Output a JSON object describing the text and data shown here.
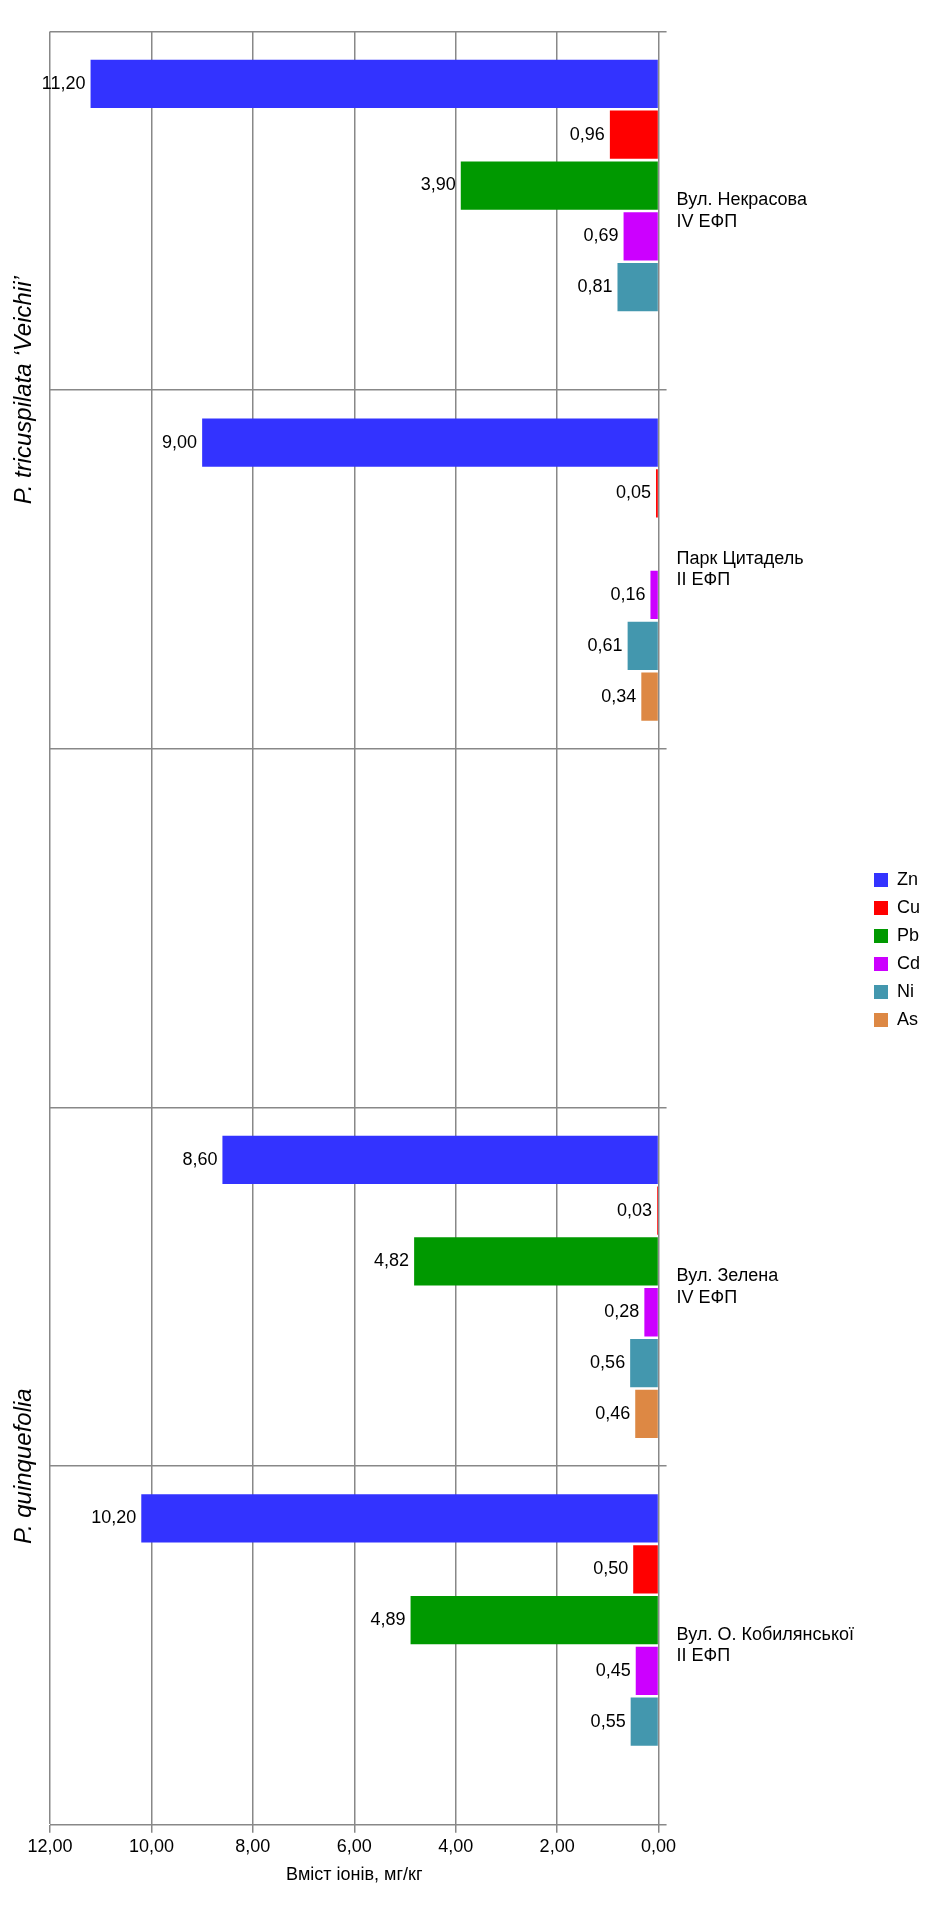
{
  "chart_data": {
    "type": "bar",
    "orientation": "horizontal",
    "xlabel": "Вміст іонів, мг/кг",
    "categories": [
      "Вул. Некрасова\nIV ЕФП",
      "Парк Цитадель\nII ЕФП",
      null,
      "Вул. Зелена\nIV ЕФП",
      "Вул. О. Кобилянської\nII ЕФП"
    ],
    "series": [
      {
        "name": "Zn",
        "color": "#3333ff",
        "values": [
          11.2,
          9.0,
          null,
          8.6,
          10.2
        ],
        "value_labels": [
          "11,20",
          "9,00",
          null,
          "8,60",
          "10,20"
        ]
      },
      {
        "name": "Cu",
        "color": "#ff0000",
        "values": [
          0.96,
          0.05,
          null,
          0.03,
          0.5
        ],
        "value_labels": [
          "0,96",
          "0,05",
          null,
          "0,03",
          "0,50"
        ]
      },
      {
        "name": "Pb",
        "color": "#009900",
        "values": [
          3.9,
          null,
          null,
          4.82,
          4.89
        ],
        "value_labels": [
          "3,90",
          null,
          null,
          "4,82",
          "4,89"
        ]
      },
      {
        "name": "Cd",
        "color": "#cc00ff",
        "values": [
          0.69,
          0.16,
          null,
          0.28,
          0.45
        ],
        "value_labels": [
          "0,69",
          "0,16",
          null,
          "0,28",
          "0,45"
        ]
      },
      {
        "name": "Ni",
        "color": "#4397ae",
        "values": [
          0.81,
          0.61,
          null,
          0.56,
          0.55
        ],
        "value_labels": [
          "0,81",
          "0,61",
          null,
          "0,56",
          "0,55"
        ]
      },
      {
        "name": "As",
        "color": "#dd8844",
        "values": [
          null,
          0.34,
          null,
          0.46,
          null
        ],
        "value_labels": [
          null,
          "0,34",
          null,
          "0,46",
          null
        ]
      }
    ],
    "xlim": [
      12,
      0
    ],
    "xticks": [
      {
        "value": 12,
        "label": "12,00"
      },
      {
        "value": 10,
        "label": "10,00"
      },
      {
        "value": 8,
        "label": "8,00"
      },
      {
        "value": 6,
        "label": "6,00"
      },
      {
        "value": 4,
        "label": "4,00"
      },
      {
        "value": 2,
        "label": "2,00"
      },
      {
        "value": 0,
        "label": "0,00"
      }
    ],
    "grid": true,
    "legend": "right",
    "annotations": [
      "P. tricuspilata ‘Veichii’",
      "P. quinquefolia"
    ]
  }
}
